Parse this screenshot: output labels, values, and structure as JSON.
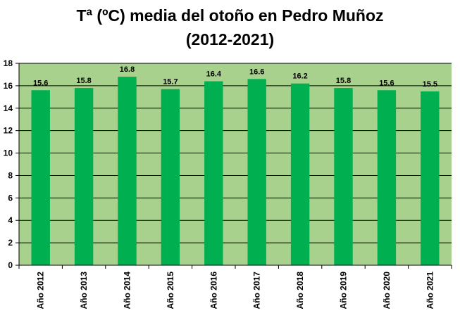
{
  "chart_data": {
    "type": "bar",
    "title_line1": "Tª (ºC) media del otoño en Pedro Muñoz",
    "title_line2": "(2012-2021)",
    "categories": [
      "Año 2012",
      "Año 2013",
      "Año 2014",
      "Año 2015",
      "Año 2016",
      "Año 2017",
      "Año 2018",
      "Año 2019",
      "Año 2020",
      "Año 2021"
    ],
    "values": [
      15.6,
      15.8,
      16.8,
      15.7,
      16.4,
      16.6,
      16.2,
      15.8,
      15.6,
      15.5
    ],
    "data_labels": [
      "15.6",
      "15.8",
      "16.8",
      "15.7",
      "16.4",
      "16.6",
      "16.2",
      "15.8",
      "15.6",
      "15.5"
    ],
    "yticks": [
      "0",
      "2",
      "4",
      "6",
      "8",
      "10",
      "12",
      "14",
      "16",
      "18"
    ],
    "ylim": [
      0,
      18
    ],
    "grid": true,
    "colors": {
      "bar": "#00b050",
      "plot_background": "#a9d18e",
      "gridline": "#000000"
    }
  }
}
